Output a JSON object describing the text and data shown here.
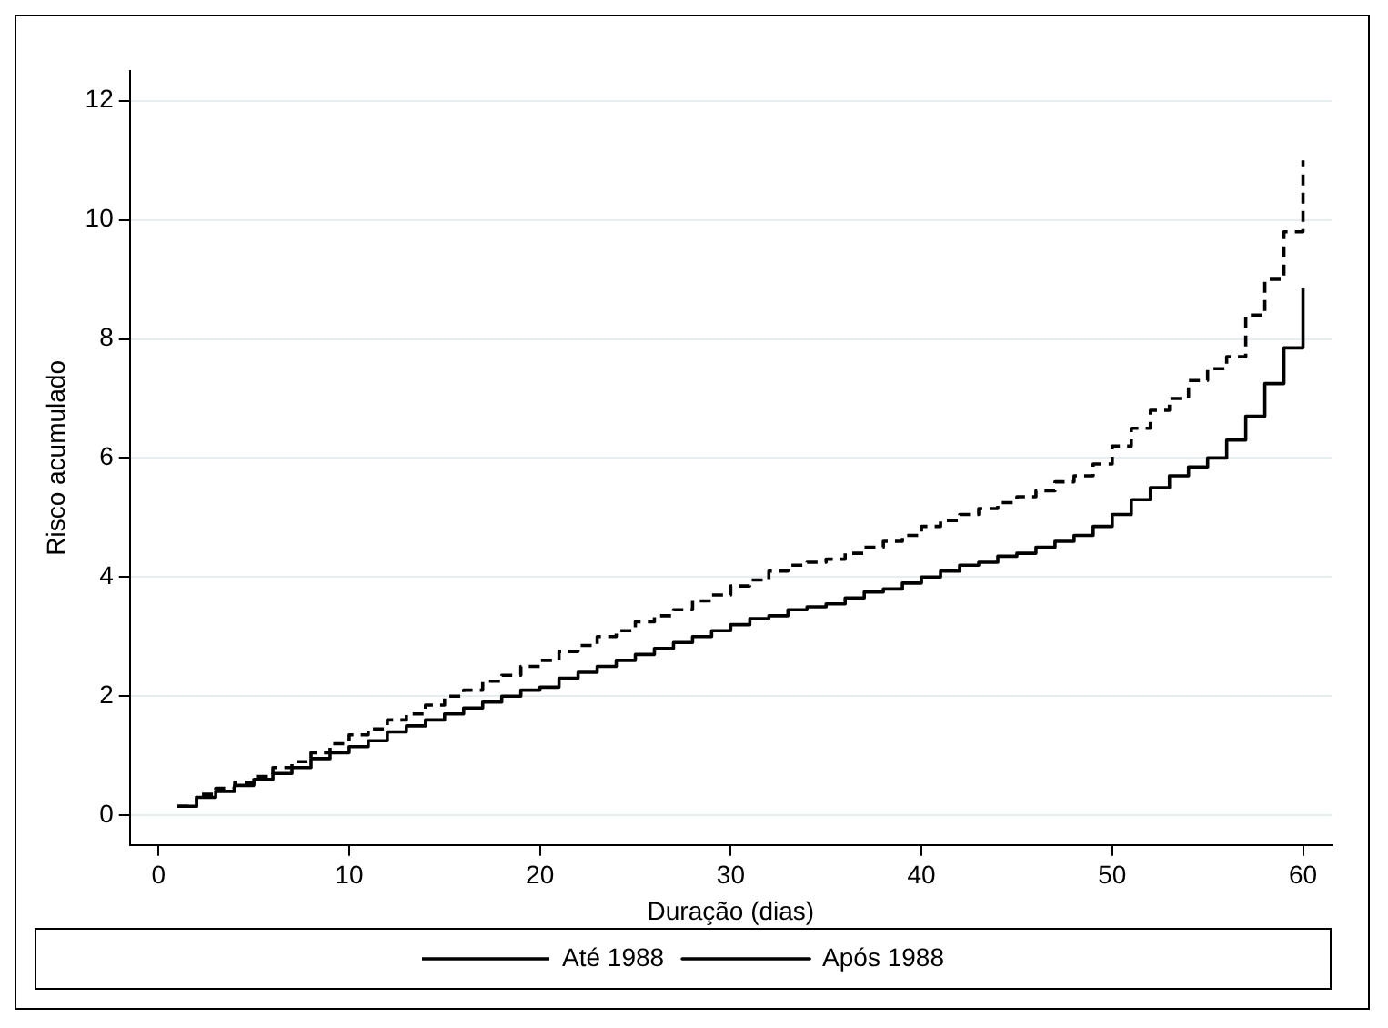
{
  "chart_data": {
    "type": "step",
    "xlabel": "Duração (dias)",
    "ylabel": "Risco acumulado",
    "x": [
      1,
      2,
      3,
      4,
      5,
      6,
      7,
      8,
      9,
      10,
      11,
      12,
      13,
      14,
      15,
      16,
      17,
      18,
      19,
      20,
      21,
      22,
      23,
      24,
      25,
      26,
      27,
      28,
      29,
      30,
      31,
      32,
      33,
      34,
      35,
      36,
      37,
      38,
      39,
      40,
      41,
      42,
      43,
      44,
      45,
      46,
      47,
      48,
      49,
      50,
      51,
      52,
      53,
      54,
      55,
      56,
      57,
      58,
      59,
      60
    ],
    "series": [
      {
        "name": "Até 1988",
        "color": "#000000",
        "line_style": "dashed",
        "values": [
          0.15,
          0.35,
          0.45,
          0.55,
          0.65,
          0.8,
          0.9,
          1.05,
          1.2,
          1.35,
          1.45,
          1.6,
          1.7,
          1.85,
          2.0,
          2.1,
          2.25,
          2.35,
          2.5,
          2.6,
          2.75,
          2.85,
          3.0,
          3.1,
          3.25,
          3.35,
          3.45,
          3.6,
          3.7,
          3.85,
          3.95,
          4.1,
          4.2,
          4.25,
          4.3,
          4.4,
          4.5,
          4.6,
          4.7,
          4.85,
          4.95,
          5.05,
          5.15,
          5.25,
          5.35,
          5.45,
          5.6,
          5.7,
          5.9,
          6.2,
          6.5,
          6.8,
          7.0,
          7.3,
          7.5,
          7.7,
          8.4,
          9.0,
          9.8,
          11.0
        ]
      },
      {
        "name": "Após 1988",
        "color": "#000000",
        "line_style": "solid",
        "values": [
          0.15,
          0.3,
          0.4,
          0.5,
          0.6,
          0.7,
          0.8,
          0.95,
          1.05,
          1.15,
          1.25,
          1.4,
          1.5,
          1.6,
          1.7,
          1.8,
          1.9,
          2.0,
          2.1,
          2.15,
          2.3,
          2.4,
          2.5,
          2.6,
          2.7,
          2.8,
          2.9,
          3.0,
          3.1,
          3.2,
          3.3,
          3.35,
          3.45,
          3.5,
          3.55,
          3.65,
          3.75,
          3.8,
          3.9,
          4.0,
          4.1,
          4.2,
          4.25,
          4.35,
          4.4,
          4.5,
          4.6,
          4.7,
          4.85,
          5.05,
          5.3,
          5.5,
          5.7,
          5.85,
          6.0,
          6.3,
          6.7,
          7.25,
          7.85,
          8.85
        ]
      }
    ],
    "xlim": [
      -1.5,
      61.5
    ],
    "xticks": [
      0,
      10,
      20,
      30,
      40,
      50,
      60
    ],
    "ylim": [
      -0.5,
      12.5
    ],
    "yticks": [
      0,
      2,
      4,
      6,
      8,
      10,
      12
    ],
    "grid": "y",
    "legend": "bottom",
    "marker": "none"
  }
}
